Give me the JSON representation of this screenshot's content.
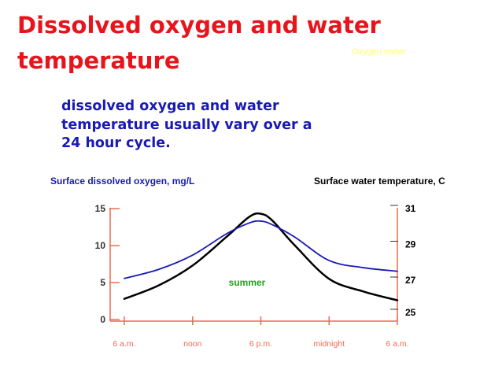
{
  "slide": {
    "title": "Dissolved oxygen and water temperature",
    "watermark": "Oxygen meter",
    "subtitle": "dissolved oxygen and water temperature usually vary over a 24 hour cycle."
  },
  "chart_data": {
    "type": "line",
    "ylabel_left": "Surface dissolved oxygen, mg/L",
    "ylabel_right": "Surface water temperature, C",
    "x_ticks": [
      "6 a.m.",
      "noon",
      "6 p.m.",
      "midnight",
      "6 a.m."
    ],
    "x_range": [
      0,
      24
    ],
    "y_left_ticks": [
      0,
      5,
      10,
      15
    ],
    "y_left_range": [
      0,
      15
    ],
    "y_right_ticks": [
      25,
      27,
      29,
      31
    ],
    "y_right_range": [
      25,
      31
    ],
    "annotation": "summer",
    "series": [
      {
        "axis": "left",
        "color": "#000000",
        "x": [
          0,
          3,
          6,
          9,
          11,
          12,
          13,
          15,
          18,
          21,
          24
        ],
        "y": [
          2.8,
          4.6,
          7.3,
          11.2,
          13.9,
          14.3,
          13.4,
          10.0,
          5.5,
          3.8,
          2.6
        ]
      },
      {
        "axis": "right",
        "color": "#1a1ab4",
        "x": [
          0,
          3,
          6,
          9,
          11,
          12,
          13,
          15,
          18,
          21,
          24
        ],
        "y": [
          27.1,
          27.6,
          28.4,
          29.6,
          30.2,
          30.3,
          30.1,
          29.4,
          28.1,
          27.7,
          27.5
        ]
      }
    ]
  }
}
